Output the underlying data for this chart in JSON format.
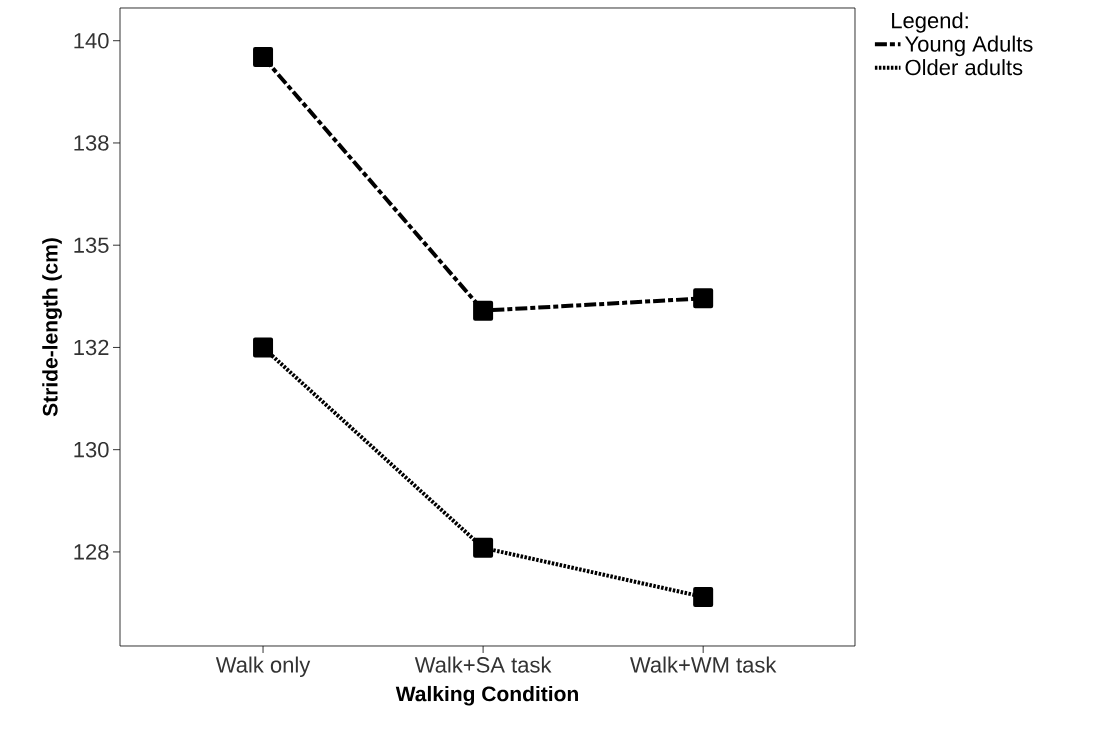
{
  "chart_data": {
    "type": "line",
    "xlabel": "Walking Condition",
    "ylabel": "Stride-length (cm)",
    "legend_title": "Legend:",
    "categories": [
      "Walk only",
      "Walk+SA task",
      "Walk+WM task"
    ],
    "series": [
      {
        "name": "Young Adults",
        "color": "#000000",
        "line_style": "dashed",
        "values": [
          139.6,
          133.4,
          133.7
        ]
      },
      {
        "name": "Older adults",
        "color": "#000000",
        "line_style": "dotted",
        "values": [
          132.5,
          127.6,
          126.4
        ]
      }
    ],
    "ylim": [
      125.2,
      140.8
    ],
    "yticks": [
      140,
      {
        "value": 137.5,
        "label": "138"
      },
      135,
      {
        "value": 132.5,
        "label": "132"
      },
      130,
      {
        "value": 127.5,
        "label": "128"
      }
    ],
    "marker": "square",
    "legend": "right",
    "grid": false
  }
}
